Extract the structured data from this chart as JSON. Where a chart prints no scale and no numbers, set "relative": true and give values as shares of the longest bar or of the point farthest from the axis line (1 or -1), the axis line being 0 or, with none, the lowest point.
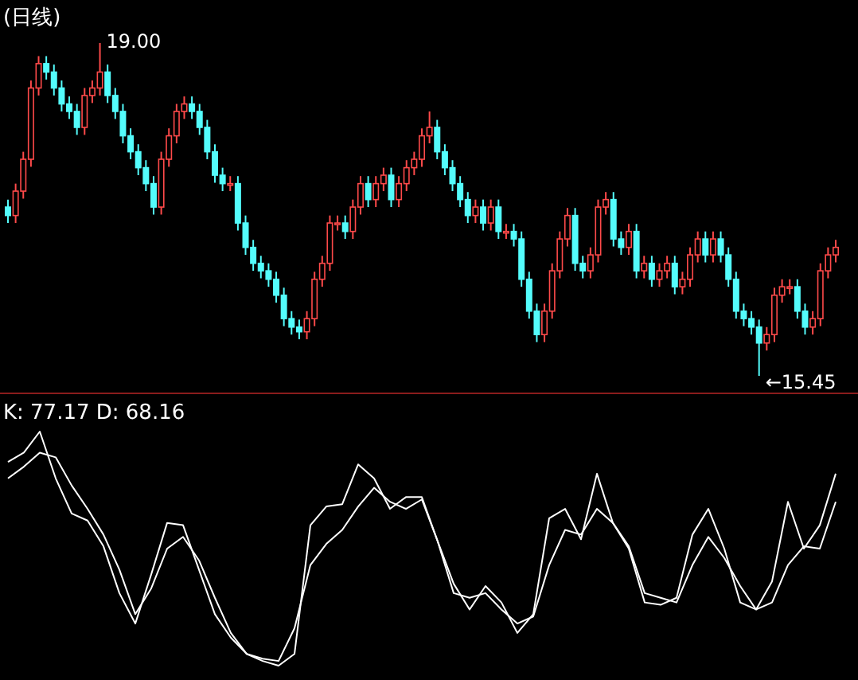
{
  "chart_data": [
    {
      "type": "candlestick",
      "title": "(日线)",
      "categories": [
        null,
        null,
        null,
        null,
        null,
        null,
        null,
        null,
        null,
        null,
        null,
        null,
        null,
        null,
        null,
        null,
        null,
        null,
        null,
        null,
        null,
        null,
        null,
        null,
        null,
        null,
        null,
        null,
        null,
        null,
        null,
        null,
        null,
        null,
        null,
        null,
        null,
        null,
        null,
        null,
        null,
        null,
        null,
        null,
        null,
        null,
        null,
        null,
        null,
        null,
        null,
        null,
        null,
        null,
        null,
        null,
        null,
        null,
        null,
        null,
        null,
        null,
        null,
        null,
        null,
        null,
        null,
        null,
        null,
        null,
        null,
        null,
        null,
        null,
        null,
        null,
        null,
        null,
        null,
        null,
        null,
        null,
        null,
        null,
        null,
        null,
        null,
        null,
        null,
        null,
        null,
        null,
        null,
        null,
        null,
        null,
        null,
        null,
        null,
        null,
        null,
        null,
        null,
        null,
        null,
        null,
        null,
        null,
        null
      ],
      "ohlc": [
        [
          17.25,
          17.33,
          17.08,
          17.16
        ],
        [
          17.16,
          17.5,
          17.08,
          17.42
        ],
        [
          17.42,
          17.84,
          17.34,
          17.76
        ],
        [
          17.76,
          18.6,
          17.68,
          18.52
        ],
        [
          18.52,
          18.86,
          18.44,
          18.78
        ],
        [
          18.78,
          18.86,
          18.61,
          18.69
        ],
        [
          18.69,
          18.77,
          18.44,
          18.52
        ],
        [
          18.52,
          18.6,
          18.27,
          18.35
        ],
        [
          18.35,
          18.43,
          18.19,
          18.27
        ],
        [
          18.27,
          18.35,
          18.02,
          18.1
        ],
        [
          18.1,
          18.52,
          18.02,
          18.44
        ],
        [
          18.44,
          18.6,
          18.36,
          18.52
        ],
        [
          18.52,
          19.0,
          18.44,
          18.69
        ],
        [
          18.69,
          18.77,
          18.36,
          18.44
        ],
        [
          18.44,
          18.52,
          18.19,
          18.27
        ],
        [
          18.27,
          18.35,
          17.93,
          18.01
        ],
        [
          18.01,
          18.09,
          17.76,
          17.84
        ],
        [
          17.84,
          17.92,
          17.59,
          17.67
        ],
        [
          17.67,
          17.75,
          17.42,
          17.5
        ],
        [
          17.5,
          17.58,
          17.17,
          17.25
        ],
        [
          17.25,
          17.84,
          17.17,
          17.76
        ],
        [
          17.76,
          18.09,
          17.68,
          18.01
        ],
        [
          18.01,
          18.35,
          17.93,
          18.27
        ],
        [
          18.27,
          18.43,
          18.19,
          18.35
        ],
        [
          18.35,
          18.43,
          18.19,
          18.27
        ],
        [
          18.27,
          18.35,
          18.02,
          18.1
        ],
        [
          18.1,
          18.18,
          17.76,
          17.84
        ],
        [
          17.84,
          17.92,
          17.51,
          17.59
        ],
        [
          17.59,
          17.67,
          17.42,
          17.5
        ],
        [
          17.5,
          17.58,
          17.42,
          17.5
        ],
        [
          17.5,
          17.58,
          17.0,
          17.08
        ],
        [
          17.08,
          17.16,
          16.74,
          16.82
        ],
        [
          16.82,
          16.9,
          16.57,
          16.65
        ],
        [
          16.65,
          16.73,
          16.49,
          16.57
        ],
        [
          16.57,
          16.65,
          16.4,
          16.48
        ],
        [
          16.48,
          16.56,
          16.23,
          16.31
        ],
        [
          16.31,
          16.39,
          15.98,
          16.06
        ],
        [
          16.06,
          16.14,
          15.89,
          15.97
        ],
        [
          15.97,
          16.05,
          15.84,
          15.92
        ],
        [
          15.92,
          16.14,
          15.84,
          16.06
        ],
        [
          16.06,
          16.56,
          15.98,
          16.48
        ],
        [
          16.48,
          16.73,
          16.4,
          16.65
        ],
        [
          16.65,
          17.16,
          16.57,
          17.08
        ],
        [
          17.08,
          17.16,
          17.0,
          17.08
        ],
        [
          17.08,
          17.16,
          16.91,
          16.99
        ],
        [
          16.99,
          17.33,
          16.91,
          17.25
        ],
        [
          17.25,
          17.58,
          17.17,
          17.5
        ],
        [
          17.5,
          17.58,
          17.25,
          17.33
        ],
        [
          17.33,
          17.58,
          17.25,
          17.5
        ],
        [
          17.5,
          17.67,
          17.42,
          17.59
        ],
        [
          17.59,
          17.67,
          17.25,
          17.33
        ],
        [
          17.33,
          17.58,
          17.25,
          17.5
        ],
        [
          17.5,
          17.75,
          17.42,
          17.67
        ],
        [
          17.67,
          17.84,
          17.59,
          17.76
        ],
        [
          17.76,
          18.09,
          17.68,
          18.01
        ],
        [
          18.01,
          18.27,
          17.93,
          18.1
        ],
        [
          18.1,
          18.18,
          17.76,
          17.84
        ],
        [
          17.84,
          17.92,
          17.59,
          17.67
        ],
        [
          17.67,
          17.75,
          17.42,
          17.5
        ],
        [
          17.5,
          17.58,
          17.25,
          17.33
        ],
        [
          17.33,
          17.41,
          17.08,
          17.16
        ],
        [
          17.16,
          17.33,
          17.08,
          17.25
        ],
        [
          17.25,
          17.33,
          17.0,
          17.08
        ],
        [
          17.08,
          17.33,
          17.0,
          17.25
        ],
        [
          17.25,
          17.33,
          16.91,
          16.99
        ],
        [
          16.99,
          17.07,
          16.91,
          16.99
        ],
        [
          16.99,
          17.07,
          16.83,
          16.91
        ],
        [
          16.91,
          16.99,
          16.4,
          16.48
        ],
        [
          16.48,
          16.56,
          16.06,
          16.14
        ],
        [
          16.14,
          16.22,
          15.81,
          15.89
        ],
        [
          15.89,
          16.22,
          15.81,
          16.14
        ],
        [
          16.14,
          16.65,
          16.06,
          16.57
        ],
        [
          16.57,
          16.99,
          16.49,
          16.91
        ],
        [
          16.91,
          17.24,
          16.83,
          17.16
        ],
        [
          17.16,
          17.24,
          16.57,
          16.65
        ],
        [
          16.65,
          16.73,
          16.49,
          16.57
        ],
        [
          16.57,
          16.82,
          16.49,
          16.74
        ],
        [
          16.74,
          17.33,
          16.66,
          17.25
        ],
        [
          17.25,
          17.41,
          17.17,
          17.33
        ],
        [
          17.33,
          17.41,
          16.83,
          16.91
        ],
        [
          16.91,
          16.99,
          16.74,
          16.82
        ],
        [
          16.82,
          17.07,
          16.74,
          16.99
        ],
        [
          16.99,
          17.07,
          16.49,
          16.57
        ],
        [
          16.57,
          16.73,
          16.49,
          16.65
        ],
        [
          16.65,
          16.73,
          16.4,
          16.48
        ],
        [
          16.48,
          16.65,
          16.4,
          16.57
        ],
        [
          16.57,
          16.73,
          16.49,
          16.65
        ],
        [
          16.65,
          16.73,
          16.32,
          16.4
        ],
        [
          16.4,
          16.56,
          16.32,
          16.48
        ],
        [
          16.48,
          16.82,
          16.4,
          16.74
        ],
        [
          16.74,
          16.99,
          16.66,
          16.91
        ],
        [
          16.91,
          16.99,
          16.66,
          16.74
        ],
        [
          16.74,
          16.99,
          16.66,
          16.91
        ],
        [
          16.91,
          16.99,
          16.66,
          16.74
        ],
        [
          16.74,
          16.82,
          16.4,
          16.48
        ],
        [
          16.48,
          16.56,
          16.06,
          16.14
        ],
        [
          16.14,
          16.22,
          15.98,
          16.06
        ],
        [
          16.06,
          16.14,
          15.89,
          15.97
        ],
        [
          15.97,
          16.05,
          15.45,
          15.8
        ],
        [
          15.8,
          15.97,
          15.72,
          15.89
        ],
        [
          15.89,
          16.39,
          15.81,
          16.31
        ],
        [
          16.31,
          16.48,
          16.23,
          16.4
        ],
        [
          16.4,
          16.48,
          16.32,
          16.4
        ],
        [
          16.4,
          16.48,
          16.06,
          16.14
        ],
        [
          16.14,
          16.22,
          15.89,
          15.97
        ],
        [
          15.97,
          16.14,
          15.89,
          16.06
        ],
        [
          16.06,
          16.65,
          15.98,
          16.57
        ],
        [
          16.57,
          16.82,
          16.49,
          16.74
        ],
        [
          16.74,
          16.9,
          16.66,
          16.82
        ]
      ],
      "annotations": [
        "19.00",
        "←15.45"
      ]
    },
    {
      "type": "line",
      "title": "K: 77.17  D: 68.16",
      "relative": true,
      "marker": "none",
      "line_style": "solid",
      "categories": [
        null,
        null,
        null,
        null,
        null,
        null,
        null,
        null,
        null,
        null,
        null,
        null,
        null,
        null,
        null,
        null,
        null,
        null,
        null,
        null,
        null,
        null,
        null,
        null,
        null,
        null,
        null,
        null,
        null,
        null,
        null,
        null,
        null,
        null,
        null,
        null,
        null,
        null,
        null,
        null,
        null,
        null,
        null,
        null,
        null,
        null,
        null,
        null,
        null,
        null,
        null,
        null,
        null
      ],
      "series": [
        {
          "color": "#ffffff",
          "values": [
            0.87,
            0.91,
            1.0,
            0.8,
            0.65,
            0.62,
            0.51,
            0.31,
            0.18,
            0.39,
            0.61,
            0.6,
            0.41,
            0.22,
            0.12,
            0.05,
            0.02,
            0.0,
            0.05,
            0.6,
            0.68,
            0.69,
            0.86,
            0.8,
            0.67,
            0.72,
            0.72,
            0.53,
            0.35,
            0.24,
            0.34,
            0.27,
            0.14,
            0.22,
            0.63,
            0.67,
            0.54,
            0.82,
            0.61,
            0.5,
            0.27,
            0.26,
            0.29,
            0.56,
            0.67,
            0.5,
            0.27,
            0.24,
            0.36,
            0.7,
            0.5,
            0.6,
            0.82
          ]
        },
        {
          "color": "#ffffff",
          "values": [
            0.8,
            0.85,
            0.91,
            0.89,
            0.77,
            0.67,
            0.56,
            0.41,
            0.22,
            0.33,
            0.5,
            0.55,
            0.45,
            0.29,
            0.14,
            0.05,
            0.03,
            0.02,
            0.16,
            0.43,
            0.52,
            0.58,
            0.68,
            0.76,
            0.7,
            0.67,
            0.71,
            0.53,
            0.31,
            0.29,
            0.31,
            0.24,
            0.18,
            0.21,
            0.43,
            0.58,
            0.56,
            0.67,
            0.61,
            0.51,
            0.31,
            0.29,
            0.27,
            0.43,
            0.55,
            0.46,
            0.34,
            0.24,
            0.27,
            0.43,
            0.51,
            0.5,
            0.7
          ]
        }
      ]
    }
  ]
}
